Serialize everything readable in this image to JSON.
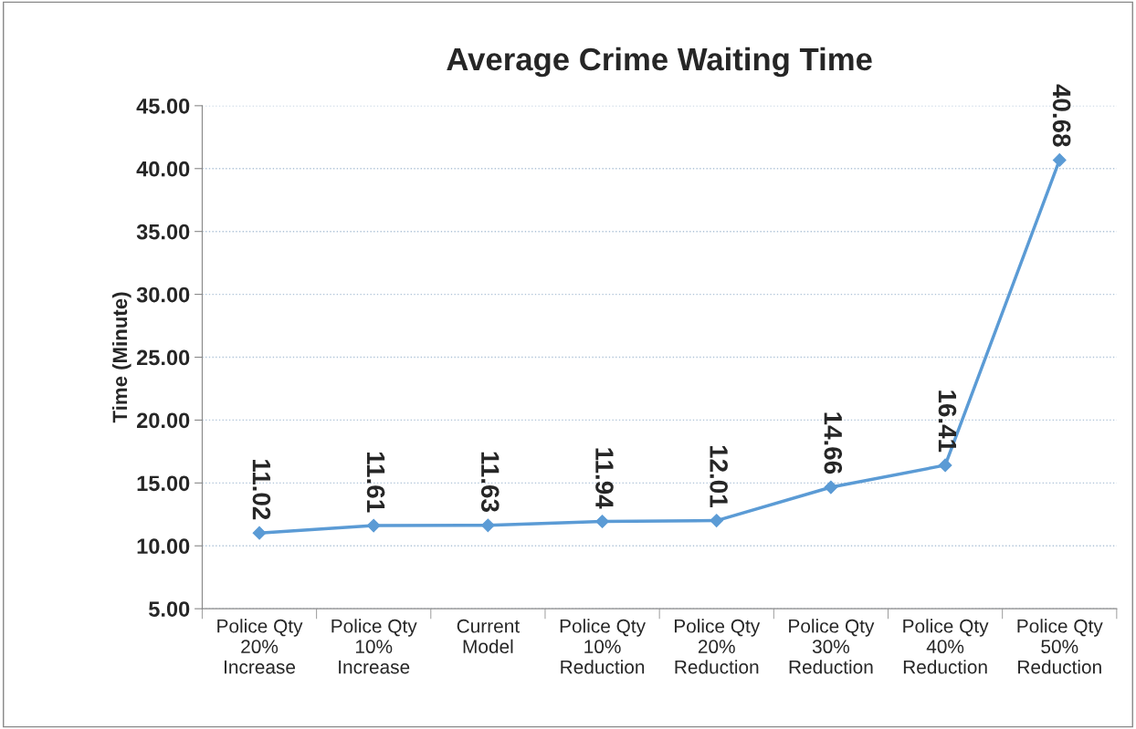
{
  "chart_data": {
    "type": "line",
    "title": "Average Crime Waiting Time",
    "ylabel": "Time (Minute)",
    "categories": [
      "Police Qty\n20%\nIncrease",
      "Police Qty\n10%\nIncrease",
      "Current\nModel",
      "Police Qty\n10%\nReduction",
      "Police Qty\n20%\nReduction",
      "Police Qty\n30%\nReduction",
      "Police Qty\n40%\nReduction",
      "Police Qty\n50%\nReduction"
    ],
    "series": [
      {
        "color": "#5b9bd5",
        "values": [
          11.02,
          11.61,
          11.63,
          11.94,
          12.01,
          14.66,
          16.41,
          40.68
        ]
      }
    ],
    "ylim": [
      5,
      45
    ],
    "yticks": [
      {
        "value": 5,
        "label": "5.00"
      },
      {
        "value": 10,
        "label": "10.00"
      },
      {
        "value": 15,
        "label": "15.00"
      },
      {
        "value": 20,
        "label": "20.00"
      },
      {
        "value": 25,
        "label": "25.00"
      },
      {
        "value": 30,
        "label": "30.00"
      },
      {
        "value": 35,
        "label": "35.00"
      },
      {
        "value": 40,
        "label": "40.00"
      },
      {
        "value": 45,
        "label": "45.00"
      }
    ],
    "grid": "y",
    "marker": "diamond",
    "line_style": "solid",
    "data_labels": true
  }
}
